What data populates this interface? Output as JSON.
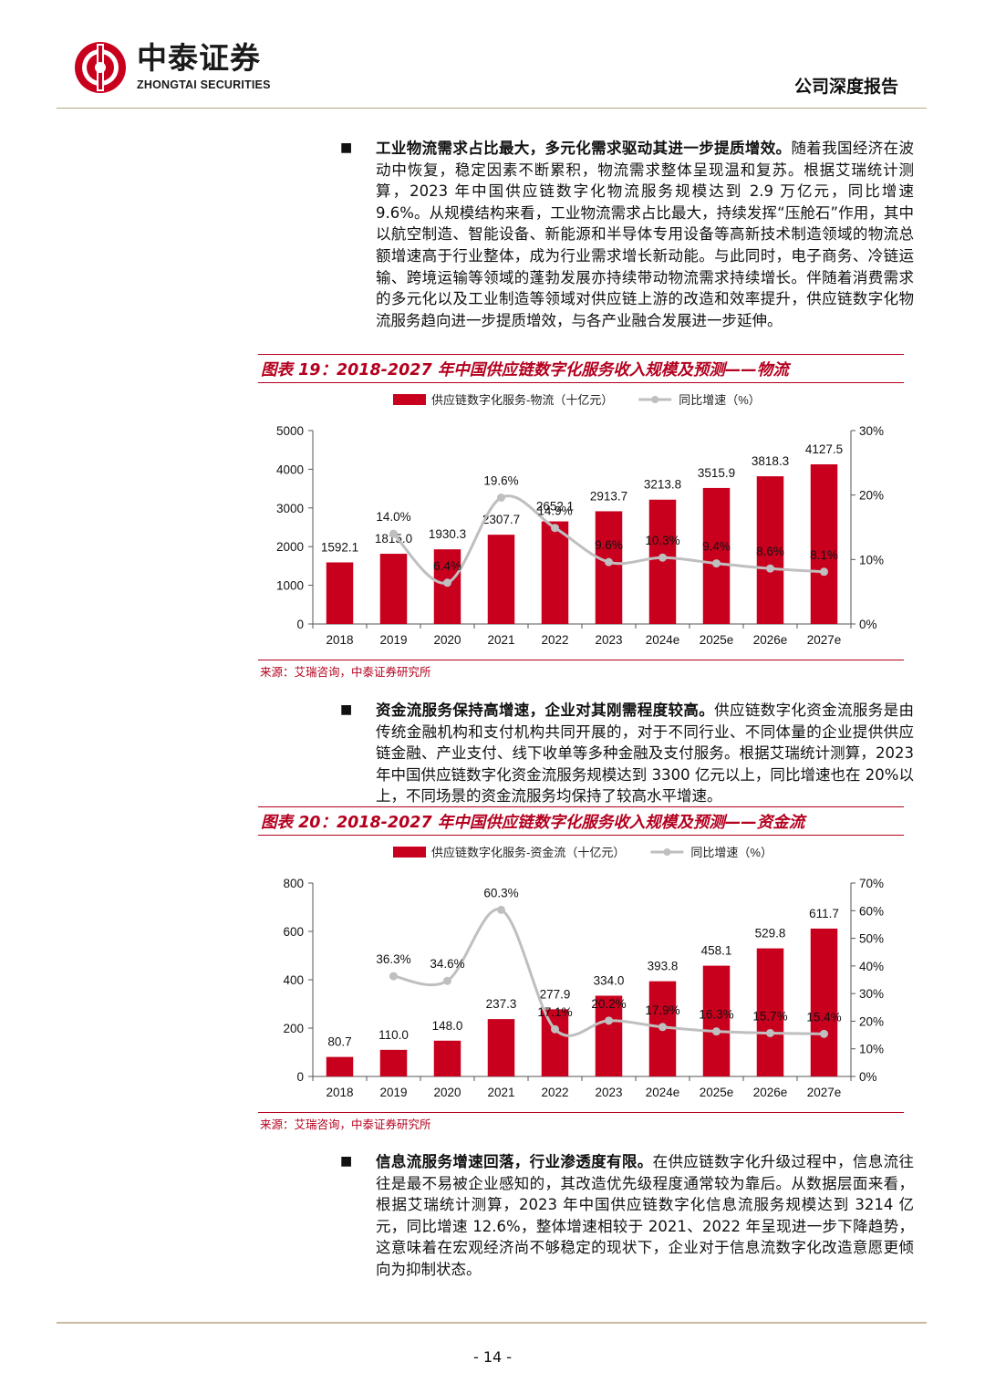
{
  "header": {
    "brand_cn": "中泰证券",
    "brand_en": "ZHONGTAI SECURITIES",
    "report_type": "公司深度报告"
  },
  "para1": {
    "bold": "工业物流需求占比最大，多元化需求驱动其进一步提质增效。",
    "text": "随着我国经济在波动中恢复，稳定因素不断累积，物流需求整体呈现温和复苏。根据艾瑞统计测算，2023 年中国供应链数字化物流服务规模达到 2.9 万亿元，同比增速 9.6%。从规模结构来看，工业物流需求占比最大，持续发挥“压舱石”作用，其中以航空制造、智能设备、新能源和半导体专用设备等高新技术制造领域的物流总额增速高于行业整体，成为行业需求增长新动能。与此同时，电子商务、冷链运输、跨境运输等领域的蓬勃发展亦持续带动物流需求持续增长。伴随着消费需求的多元化以及工业制造等领域对供应链上游的改造和效率提升，供应链数字化物流服务趋向进一步提质增效，与各产业融合发展进一步延伸。"
  },
  "para2": {
    "bold": "资金流服务保持高增速，企业对其刚需程度较高。",
    "text": "供应链数字化资金流服务是由传统金融机构和支付机构共同开展的，对于不同行业、不同体量的企业提供供应链金融、产业支付、线下收单等多种金融及支付服务。根据艾瑞统计测算，2023 年中国供应链数字化资金流服务规模达到 3300 亿元以上，同比增速也在 20%以上，不同场景的资金流服务均保持了较高水平增速。"
  },
  "para3": {
    "bold": "信息流服务增速回落，行业渗透度有限。",
    "text": "在供应链数字化升级过程中，信息流往往是最不易被企业感知的，其改造优先级程度通常较为靠后。从数据层面来看，根据艾瑞统计测算，2023 年中国供应链数字化信息流服务规模达到 3214 亿元，同比增速 12.6%，整体增速相较于 2021、2022 年呈现进一步下降趋势，这意味着在宏观经济尚不够稳定的现状下，企业对于信息流数字化改造意愿更倾向为抑制状态。"
  },
  "bullet_symbol": "■",
  "chart1_title": "图表 19：2018-2027 年中国供应链数字化服务收入规模及预测——物流",
  "chart2_title": "图表 20：2018-2027 年中国供应链数字化服务收入规模及预测——资金流",
  "source1": "来源：艾瑞咨询，中泰证券研究所",
  "source2": "来源：艾瑞咨询，中泰证券研究所",
  "page_number": "- 14 -",
  "colors": {
    "bar": "#c8001e",
    "line": "#bfbfbf",
    "accent": "#b4001e"
  },
  "chart_data": [
    {
      "type": "bar",
      "categories": [
        "2018",
        "2019",
        "2020",
        "2021",
        "2022",
        "2023",
        "2024e",
        "2025e",
        "2026e",
        "2027e"
      ],
      "series": [
        {
          "name": "供应链数字化服务-物流（十亿元）",
          "type": "bar",
          "axis": "left",
          "values": [
            1592.1,
            1815.0,
            1930.3,
            2307.7,
            2652.1,
            2913.7,
            3213.8,
            3515.9,
            3818.3,
            4127.5
          ],
          "labels": [
            "1592.1",
            "1815.0",
            "1930.3",
            "2307.7",
            "2652.1",
            "2913.7",
            "3213.8",
            "3515.9",
            "3818.3",
            "4127.5"
          ]
        },
        {
          "name": "同比增速（%）",
          "type": "line",
          "axis": "right",
          "values": [
            null,
            14.0,
            6.4,
            19.6,
            14.9,
            9.6,
            10.3,
            9.4,
            8.6,
            8.1
          ],
          "labels": [
            "",
            "14.0%",
            "6.4%",
            "19.6%",
            "14.9%",
            "9.6%",
            "10.3%",
            "9.4%",
            "8.6%",
            "8.1%"
          ]
        }
      ],
      "ylim": [
        0,
        5000
      ],
      "yticks": [
        "0",
        "1000",
        "2000",
        "3000",
        "4000",
        "5000"
      ],
      "y2lim": [
        0,
        30
      ],
      "y2ticks": [
        "0%",
        "10%",
        "20%",
        "30%"
      ],
      "legend": "top"
    },
    {
      "type": "bar",
      "categories": [
        "2018",
        "2019",
        "2020",
        "2021",
        "2022",
        "2023",
        "2024e",
        "2025e",
        "2026e",
        "2027e"
      ],
      "series": [
        {
          "name": "供应链数字化服务-资金流（十亿元）",
          "type": "bar",
          "axis": "left",
          "values": [
            80.7,
            110.0,
            148.0,
            237.3,
            277.9,
            334.0,
            393.8,
            458.1,
            529.8,
            611.7
          ],
          "labels": [
            "80.7",
            "110.0",
            "148.0",
            "237.3",
            "277.9",
            "334.0",
            "393.8",
            "458.1",
            "529.8",
            "611.7"
          ]
        },
        {
          "name": "同比增速（%）",
          "type": "line",
          "axis": "right",
          "values": [
            null,
            36.3,
            34.6,
            60.3,
            17.1,
            20.2,
            17.9,
            16.3,
            15.7,
            15.4
          ],
          "labels": [
            "",
            "36.3%",
            "34.6%",
            "60.3%",
            "17.1%",
            "20.2%",
            "17.9%",
            "16.3%",
            "15.7%",
            "15.4%"
          ]
        }
      ],
      "ylim": [
        0,
        800
      ],
      "yticks": [
        "0",
        "200",
        "400",
        "600",
        "800"
      ],
      "y2lim": [
        0,
        70
      ],
      "y2ticks": [
        "0%",
        "10%",
        "20%",
        "30%",
        "40%",
        "50%",
        "60%",
        "70%"
      ],
      "legend": "top"
    }
  ]
}
